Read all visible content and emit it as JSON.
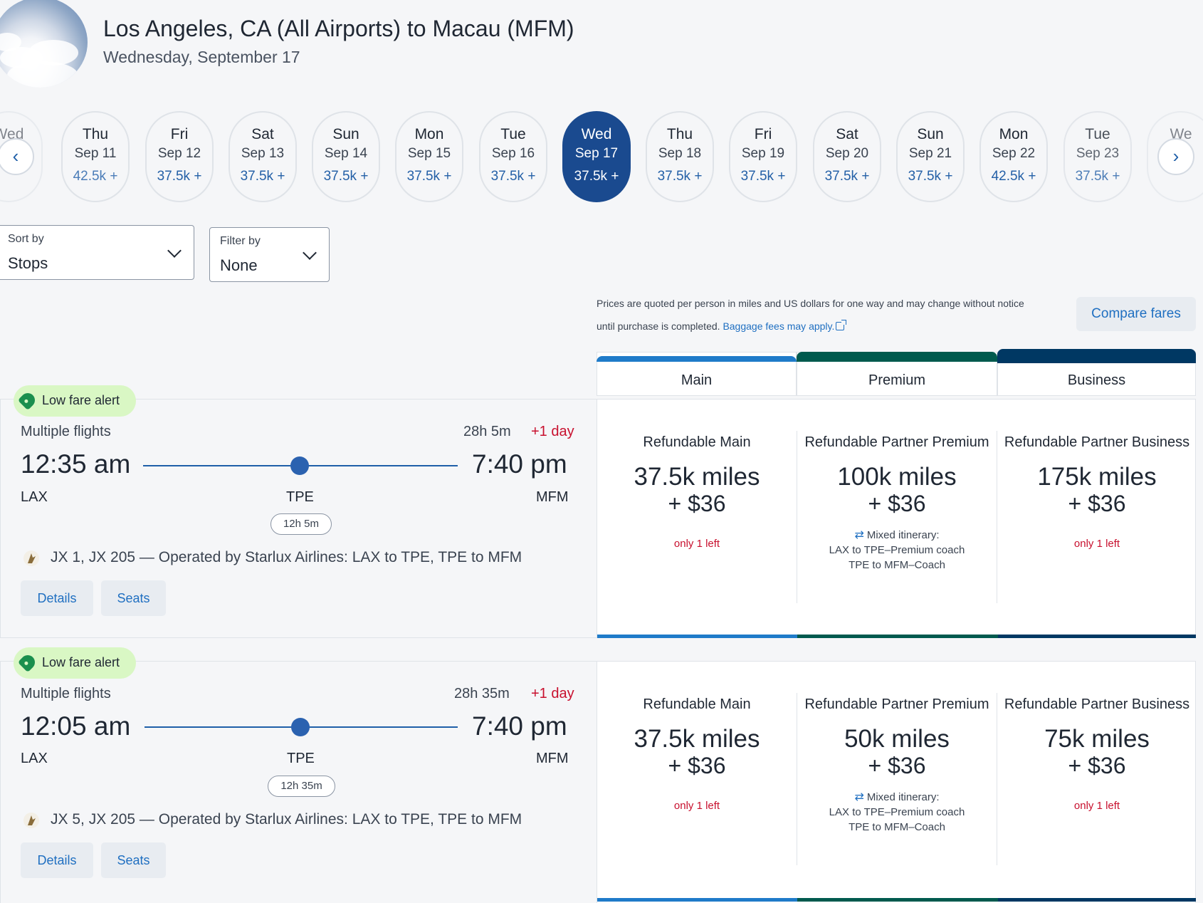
{
  "header": {
    "title": "Los Angeles, CA (All Airports) to Macau (MFM)",
    "subtitle": "Wednesday, September 17"
  },
  "dates": [
    {
      "dow": "Wed",
      "md": "",
      "price": ""
    },
    {
      "dow": "Thu",
      "md": "Sep 11",
      "price": "42.5k +"
    },
    {
      "dow": "Fri",
      "md": "Sep 12",
      "price": "37.5k +"
    },
    {
      "dow": "Sat",
      "md": "Sep 13",
      "price": "37.5k +"
    },
    {
      "dow": "Sun",
      "md": "Sep 14",
      "price": "37.5k +"
    },
    {
      "dow": "Mon",
      "md": "Sep 15",
      "price": "37.5k +"
    },
    {
      "dow": "Tue",
      "md": "Sep 16",
      "price": "37.5k +"
    },
    {
      "dow": "Wed",
      "md": "Sep 17",
      "price": "37.5k +"
    },
    {
      "dow": "Thu",
      "md": "Sep 18",
      "price": "37.5k +"
    },
    {
      "dow": "Fri",
      "md": "Sep 19",
      "price": "37.5k +"
    },
    {
      "dow": "Sat",
      "md": "Sep 20",
      "price": "37.5k +"
    },
    {
      "dow": "Sun",
      "md": "Sep 21",
      "price": "37.5k +"
    },
    {
      "dow": "Mon",
      "md": "Sep 22",
      "price": "42.5k +"
    },
    {
      "dow": "Tue",
      "md": "Sep 23",
      "price": "37.5k +"
    },
    {
      "dow": "We",
      "md": "",
      "price": ""
    }
  ],
  "nav": {
    "prev_icon": "chevron-left-icon",
    "next_icon": "chevron-right-icon"
  },
  "sort": {
    "label": "Sort by",
    "value": "Stops"
  },
  "filter": {
    "label": "Filter by",
    "value": "None"
  },
  "notice": {
    "text": "Prices are quoted per person in miles and US dollars for one way and may change without notice until purchase is completed.",
    "link": "Baggage fees may apply."
  },
  "compare_label": "Compare fares",
  "cabins": [
    {
      "label": "Main",
      "color": "#1f7bc9"
    },
    {
      "label": "Premium",
      "color": "#005a4e"
    },
    {
      "label": "Business",
      "color": "#003863"
    }
  ],
  "flights": [
    {
      "badge": "Low fare alert",
      "type": "Multiple flights",
      "duration": "28h 5m",
      "plus_day": "+1 day",
      "depart_time": "12:35 am",
      "arrive_time": "7:40 pm",
      "origin": "LAX",
      "stop": "TPE",
      "dest": "MFM",
      "layover": "12h 5m",
      "operator": "JX 1, JX 205 — Operated by Starlux Airlines: LAX to TPE, TPE to MFM",
      "details_label": "Details",
      "seats_label": "Seats",
      "fares": [
        {
          "name": "Refundable Main",
          "miles": "37.5k miles",
          "cash": "+ $36",
          "note": "only 1 left"
        },
        {
          "name": "Refundable Partner Premium",
          "miles": "100k miles",
          "cash": "+ $36",
          "mixed_title": "Mixed itinerary:",
          "mixed_1": "LAX to TPE–Premium coach",
          "mixed_2": "TPE to MFM–Coach"
        },
        {
          "name": "Refundable Partner Business",
          "miles": "175k miles",
          "cash": "+ $36",
          "note": "only 1 left"
        }
      ]
    },
    {
      "badge": "Low fare alert",
      "type": "Multiple flights",
      "duration": "28h 35m",
      "plus_day": "+1 day",
      "depart_time": "12:05 am",
      "arrive_time": "7:40 pm",
      "origin": "LAX",
      "stop": "TPE",
      "dest": "MFM",
      "layover": "12h 35m",
      "operator": "JX 5, JX 205 — Operated by Starlux Airlines: LAX to TPE, TPE to MFM",
      "details_label": "Details",
      "seats_label": "Seats",
      "fares": [
        {
          "name": "Refundable Main",
          "miles": "37.5k miles",
          "cash": "+ $36",
          "note": "only 1 left"
        },
        {
          "name": "Refundable Partner Premium",
          "miles": "50k miles",
          "cash": "+ $36",
          "mixed_title": "Mixed itinerary:",
          "mixed_1": "LAX to TPE–Premium coach",
          "mixed_2": "TPE to MFM–Coach"
        },
        {
          "name": "Refundable Partner Business",
          "miles": "75k miles",
          "cash": "+ $36",
          "note": "only 1 left"
        }
      ]
    }
  ]
}
